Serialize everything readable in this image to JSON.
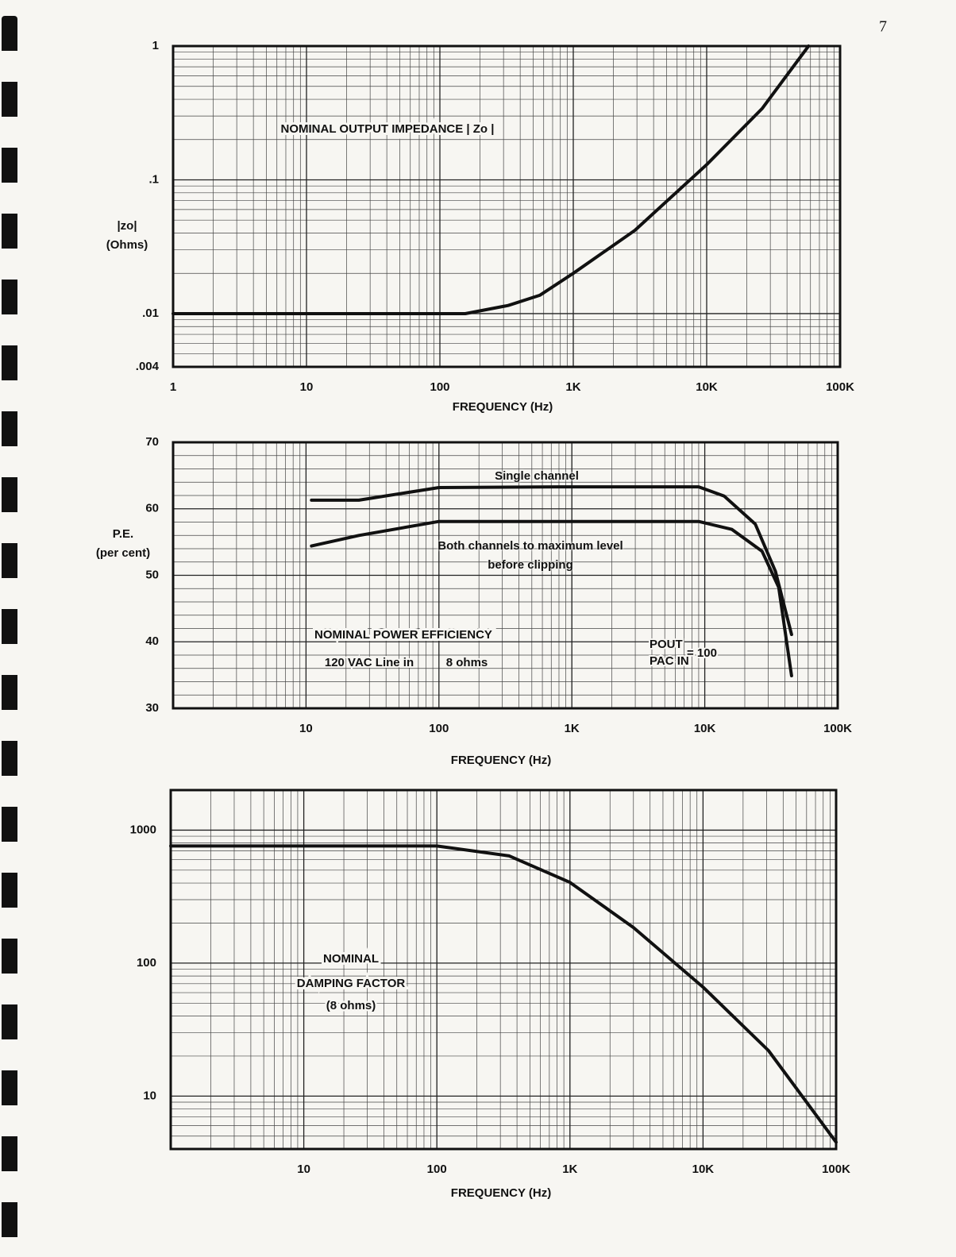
{
  "page_number": "7",
  "chart_data": [
    {
      "type": "line",
      "title": "NOMINAL OUTPUT IMPEDANCE | Zo |",
      "ylabel": [
        "|zo|",
        "(Ohms)"
      ],
      "xlabel": "FREQUENCY (Hz)",
      "xscale": "log",
      "yscale": "log",
      "grid": true,
      "minor_grid": true,
      "xlim": [
        1,
        100000
      ],
      "ylim": [
        0.004,
        1
      ],
      "xticks": [
        1,
        10,
        100,
        {
          "value": 1000,
          "label": "1K"
        },
        {
          "value": 10000,
          "label": "10K"
        },
        {
          "value": 100000,
          "label": "100K"
        }
      ],
      "yticks": [
        {
          "value": 0.004,
          "label": ".004"
        },
        {
          "value": 0.01,
          "label": ".01"
        },
        {
          "value": 0.1,
          "label": ".1"
        },
        1
      ],
      "color": "#111111",
      "x": [
        1,
        10,
        100,
        155,
        325,
        560,
        1000,
        2900,
        10000,
        26000,
        58000
      ],
      "values": [
        0.01,
        0.01,
        0.01,
        0.01,
        0.0115,
        0.0137,
        0.02,
        0.042,
        0.13,
        0.34,
        1
      ]
    },
    {
      "type": "line",
      "title": "NOMINAL POWER EFFICIENCY",
      "ylabel": [
        "P.E.",
        "(per cent)"
      ],
      "xlabel": "FREQUENCY (Hz)",
      "annotations": [
        "120 VAC Line in",
        "8 ohms",
        "POUT",
        "PAC IN",
        "= 100"
      ],
      "xscale": "log",
      "yscale": "linear",
      "grid": true,
      "minor_grid": true,
      "xlim": [
        1,
        100000
      ],
      "ylim": [
        30,
        70
      ],
      "xticks": [
        10,
        100,
        {
          "value": 1000,
          "label": "1K"
        },
        {
          "value": 10000,
          "label": "10K"
        },
        {
          "value": 100000,
          "label": "100K"
        }
      ],
      "yticks": [
        30,
        40,
        50,
        60,
        70
      ],
      "series": [
        {
          "name": "Single channel",
          "color": "#111111",
          "x": [
            11,
            25,
            100,
            800,
            9000,
            14000,
            24000,
            34000,
            45000
          ],
          "values": [
            61.3,
            61.3,
            63.2,
            63.3,
            63.3,
            61.9,
            57.7,
            50.6,
            41.1
          ]
        },
        {
          "name": "Both channels to maximum level before clipping",
          "color": "#111111",
          "x": [
            11,
            25,
            100,
            9000,
            16000,
            27000,
            36000,
            45000
          ],
          "values": [
            54.4,
            56,
            58.1,
            58.1,
            56.9,
            53.6,
            48.2,
            34.9
          ]
        }
      ]
    },
    {
      "type": "line",
      "title": [
        "NOMINAL",
        "DAMPING FACTOR"
      ],
      "subtitle": "(8 ohms)",
      "xlabel": "FREQUENCY (Hz)",
      "xscale": "log",
      "yscale": "log",
      "grid": true,
      "minor_grid": true,
      "xlim": [
        1,
        100000
      ],
      "ylim": [
        4,
        2000
      ],
      "xticks": [
        10,
        100,
        {
          "value": 1000,
          "label": "1K"
        },
        {
          "value": 10000,
          "label": "10K"
        },
        {
          "value": 100000,
          "label": "100K"
        }
      ],
      "yticks": [
        10,
        100,
        1000
      ],
      "color": "#111111",
      "x": [
        1,
        100,
        350,
        1000,
        3000,
        10000,
        31000,
        100000
      ],
      "values": [
        760,
        760,
        640,
        405,
        185,
        66,
        22,
        4.5
      ]
    }
  ]
}
